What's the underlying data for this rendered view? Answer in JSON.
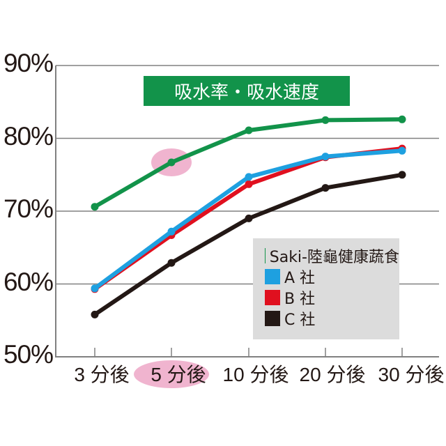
{
  "chart_data": {
    "type": "line",
    "title": "吸水率・吸水速度",
    "xlabel": "",
    "ylabel": "",
    "categories": [
      "3 分後",
      "5 分後",
      "10 分後",
      "20 分後",
      "30 分後"
    ],
    "highlighted_category": "5 分後",
    "yticks": [
      "50%",
      "60%",
      "70%",
      "80%",
      "90%"
    ],
    "ylim": [
      50,
      90
    ],
    "grid": true,
    "legend_position": "lower right",
    "series": [
      {
        "name": "Saki-陸龜健康蔬食",
        "color": "#12934a",
        "values": [
          70.6,
          76.7,
          81.1,
          82.5,
          82.6
        ]
      },
      {
        "name": "A 社",
        "color": "#1ea0e0",
        "values": [
          59.4,
          67.2,
          74.7,
          77.5,
          78.3
        ]
      },
      {
        "name": "B 社",
        "color": "#e0101f",
        "values": [
          59.3,
          66.7,
          73.7,
          77.4,
          78.6
        ]
      },
      {
        "name": "C 社",
        "color": "#231815",
        "values": [
          55.8,
          62.9,
          69.0,
          73.2,
          75.0
        ]
      }
    ]
  },
  "colors": {
    "title_bg": "#12934a",
    "highlight": "#f0b4cf",
    "legend_bg": "#dcdcdc",
    "grid": "#808080"
  }
}
